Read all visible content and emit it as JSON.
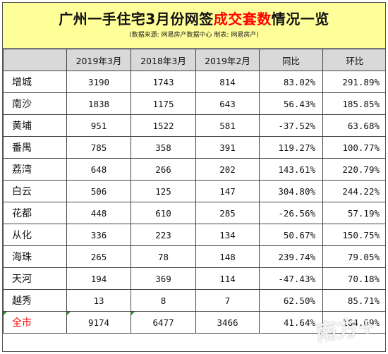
{
  "title": {
    "part1": "广州一手住宅3月份网签",
    "highlight": "成交套数",
    "part2": "情况一览"
  },
  "source_note": "(数据来源: 网易房产数据中心  制表: 网易房产)",
  "columns": [
    "",
    "2019年3月",
    "2018年3月",
    "2019年2月",
    "同比",
    "环比"
  ],
  "rows": [
    {
      "district": "增城",
      "mar2019": "3190",
      "mar2018": "1743",
      "feb2019": "814",
      "yoy": "83.02%",
      "mom": "291.89%"
    },
    {
      "district": "南沙",
      "mar2019": "1838",
      "mar2018": "1175",
      "feb2019": "643",
      "yoy": "56.43%",
      "mom": "185.85%"
    },
    {
      "district": "黄埔",
      "mar2019": "951",
      "mar2018": "1522",
      "feb2019": "581",
      "yoy": "-37.52%",
      "mom": "63.68%"
    },
    {
      "district": "番禺",
      "mar2019": "785",
      "mar2018": "358",
      "feb2019": "391",
      "yoy": "119.27%",
      "mom": "100.77%"
    },
    {
      "district": "荔湾",
      "mar2019": "648",
      "mar2018": "266",
      "feb2019": "202",
      "yoy": "143.61%",
      "mom": "220.79%"
    },
    {
      "district": "白云",
      "mar2019": "506",
      "mar2018": "125",
      "feb2019": "147",
      "yoy": "304.80%",
      "mom": "244.22%"
    },
    {
      "district": "花都",
      "mar2019": "448",
      "mar2018": "610",
      "feb2019": "285",
      "yoy": "-26.56%",
      "mom": "57.19%"
    },
    {
      "district": "从化",
      "mar2019": "336",
      "mar2018": "223",
      "feb2019": "134",
      "yoy": "50.67%",
      "mom": "150.75%"
    },
    {
      "district": "海珠",
      "mar2019": "265",
      "mar2018": "78",
      "feb2019": "148",
      "yoy": "239.74%",
      "mom": "79.05%"
    },
    {
      "district": "天河",
      "mar2019": "194",
      "mar2018": "369",
      "feb2019": "114",
      "yoy": "-47.43%",
      "mom": "70.18%"
    },
    {
      "district": "越秀",
      "mar2019": "13",
      "mar2018": "8",
      "feb2019": "7",
      "yoy": "62.50%",
      "mom": "85.71%"
    }
  ],
  "total": {
    "district": "全市",
    "mar2019": "9174",
    "mar2018": "6477",
    "feb2019": "3466",
    "yoy": "41.64%",
    "mom": "164.69%"
  },
  "watermark": "南方+",
  "colors": {
    "title_bg": "#ffff99",
    "header_bg": "#d9d9d9",
    "highlight": "#ff0000",
    "error_marker": "#1a9a1a"
  }
}
